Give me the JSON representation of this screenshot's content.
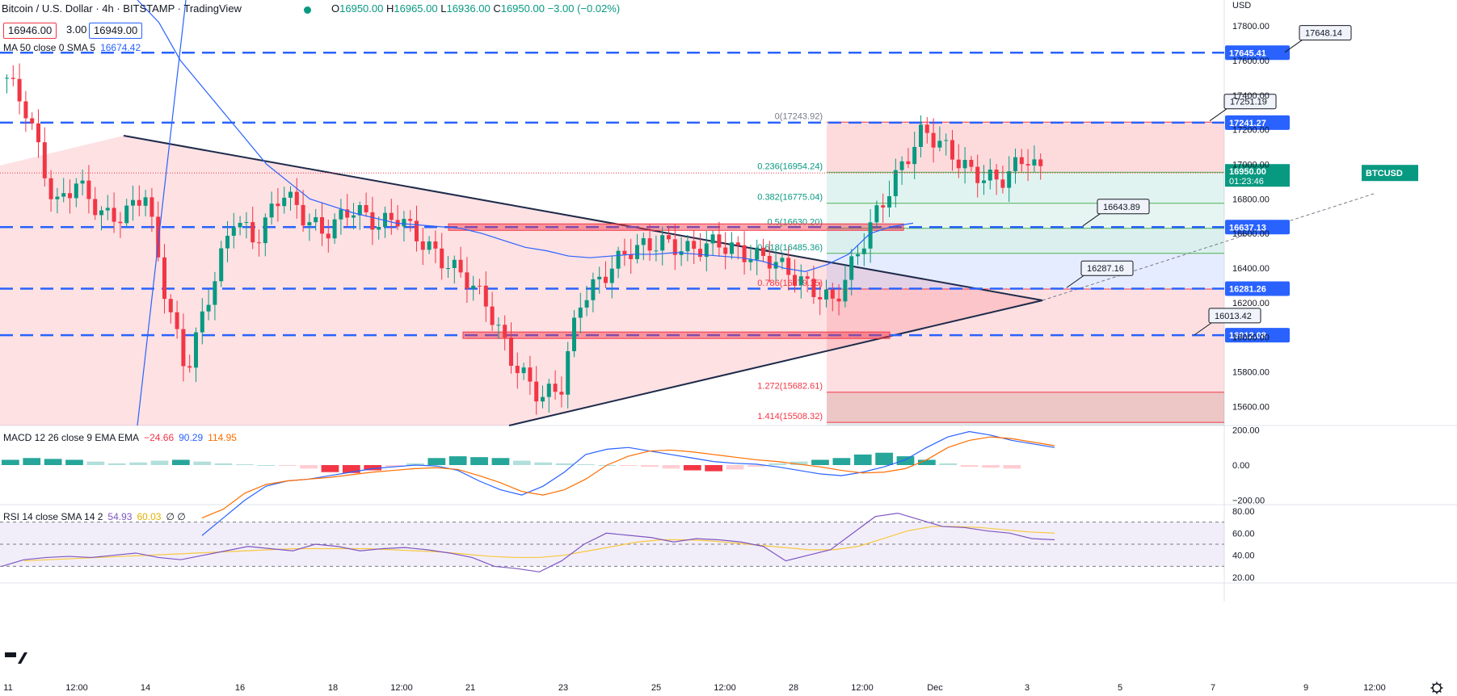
{
  "header": {
    "symbol_title": "Bitcoin / U.S. Dollar · 4h · BITSTAMP · TradingView",
    "open": "16950.00",
    "high": "16965.00",
    "low": "16936.00",
    "close": "16950.00",
    "change": "−3.00 (−0.02%)",
    "bid": "16946.00",
    "spread": "3.00",
    "ask": "16949.00"
  },
  "ma_legend": {
    "label": "MA 50 close 0 SMA 5",
    "value": "16674.42"
  },
  "macd_legend": {
    "label": "MACD 12 26 close 9 EMA EMA",
    "hist": "−24.66",
    "macd": "90.29",
    "signal": "114.95"
  },
  "rsi_legend": {
    "label": "RSI 14 close SMA 14 2",
    "rsi": "54.93",
    "sma": "60.03",
    "extra": "∅ ∅"
  },
  "colors": {
    "up": "#089981",
    "down": "#f23645",
    "level_line": "#2962ff",
    "ma": "#2962ff",
    "macd_line": "#2962ff",
    "signal_line": "#ff6d00",
    "rsi_line": "#7e57c2",
    "rsi_sma": "#f7c843"
  },
  "chart_data": {
    "type": "candlestick",
    "title": "Bitcoin / U.S. Dollar · 4h · BITSTAMP",
    "currency": "USD",
    "price_range": [
      15490,
      17950
    ],
    "price_ticks": [
      "17800.00",
      "17600.00",
      "17400.00",
      "17200.00",
      "17000.00",
      "16800.00",
      "16600.00",
      "16400.00",
      "16200.00",
      "16000.00",
      "15800.00",
      "15600.00"
    ],
    "time_labels": [
      "11",
      "12:00",
      "14",
      "16",
      "18",
      "12:00",
      "21",
      "23",
      "25",
      "12:00",
      "28",
      "12:00",
      "Dec",
      "3",
      "5",
      "7",
      "9",
      "12:00"
    ],
    "last_price": {
      "symbol": "BTCUSD",
      "value": "16950.00",
      "countdown": "01:23:46",
      "price": 16950
    },
    "horizontal_levels": [
      {
        "price": 17645.41,
        "label": "17645.41"
      },
      {
        "price": 17241.27,
        "label": "17241.27"
      },
      {
        "price": 16637.13,
        "label": "16637.13"
      },
      {
        "price": 16281.26,
        "label": "16281.26"
      },
      {
        "price": 16012.08,
        "label": "16012.08"
      }
    ],
    "callouts": [
      {
        "text": "17648.14",
        "price": 17648.14
      },
      {
        "text": "17251.19",
        "price": 17251.19
      },
      {
        "text": "16643.89",
        "price": 16643.89
      },
      {
        "text": "16287.16",
        "price": 16287.16
      },
      {
        "text": "16013.42",
        "price": 16013.42
      }
    ],
    "fibonacci": [
      {
        "ratio": "0",
        "label": "0(17243.92)",
        "price": 17243.92
      },
      {
        "ratio": "0.236",
        "label": "0.236(16954.24)",
        "price": 16954.24
      },
      {
        "ratio": "0.382",
        "label": "0.382(16775.04)",
        "price": 16775.04
      },
      {
        "ratio": "0.5",
        "label": "0.5(16630.20)",
        "price": 16630.2
      },
      {
        "ratio": "0.618",
        "label": "0.618(16485.36)",
        "price": 16485.36
      },
      {
        "ratio": "0.786",
        "label": "0.786(16279.15)",
        "price": 16279.15
      },
      {
        "ratio": "1.272",
        "label": "1.272(15682.61)",
        "price": 15682.61
      },
      {
        "ratio": "1.414",
        "label": "1.414(15508.32)",
        "price": 15508.32
      }
    ],
    "ma_line": [
      17950,
      17820,
      17600,
      17450,
      17300,
      17150,
      17000,
      16900,
      16800,
      16760,
      16720,
      16690,
      16660,
      16650,
      16640,
      16630,
      16600,
      16560,
      16520,
      16500,
      16470,
      16460,
      16470,
      16480,
      16480,
      16490,
      16480,
      16470,
      16460,
      16440,
      16400,
      16380,
      16420,
      16480,
      16600,
      16640,
      16660
    ],
    "macd": {
      "range": [
        -220,
        220
      ],
      "ticks": [
        "200.00",
        "0.00",
        "−200.00"
      ],
      "hist": [
        30,
        40,
        35,
        30,
        20,
        10,
        15,
        25,
        30,
        20,
        10,
        5,
        0,
        -5,
        -20,
        -40,
        -45,
        -30,
        -10,
        10,
        40,
        50,
        45,
        40,
        25,
        15,
        10,
        5,
        0,
        -5,
        -10,
        -20,
        -30,
        -35,
        -25,
        -10,
        10,
        20,
        30,
        40,
        60,
        70,
        50,
        30,
        10,
        -10,
        -15,
        -20
      ],
      "line": [
        -400,
        -300,
        -200,
        -120,
        -90,
        -80,
        -60,
        -40,
        -20,
        -10,
        0,
        -5,
        -30,
        -90,
        -140,
        -170,
        -120,
        -40,
        60,
        90,
        100,
        80,
        60,
        40,
        20,
        10,
        5,
        -10,
        -30,
        -50,
        -60,
        -40,
        -10,
        30,
        100,
        160,
        190,
        170,
        140,
        120,
        100
      ],
      "signal": [
        -300,
        -250,
        -160,
        -110,
        -90,
        -80,
        -70,
        -55,
        -40,
        -30,
        -20,
        -15,
        -25,
        -60,
        -100,
        -150,
        -170,
        -140,
        -80,
        0,
        50,
        80,
        85,
        75,
        60,
        45,
        30,
        20,
        5,
        -10,
        -30,
        -45,
        -40,
        -20,
        30,
        100,
        140,
        160,
        150,
        130,
        110
      ]
    },
    "rsi": {
      "range": [
        15,
        85
      ],
      "ticks": [
        "80.00",
        "60.00",
        "40.00",
        "20.00"
      ],
      "bands": [
        70,
        50,
        30
      ],
      "line": [
        30,
        36,
        38,
        39,
        38,
        40,
        42,
        38,
        36,
        40,
        44,
        48,
        46,
        44,
        50,
        48,
        44,
        46,
        47,
        45,
        42,
        38,
        30,
        28,
        25,
        35,
        50,
        60,
        58,
        56,
        52,
        55,
        54,
        52,
        48,
        35,
        40,
        45,
        60,
        75,
        78,
        72,
        66,
        65,
        62,
        60,
        55,
        54
      ],
      "sma": [
        35,
        36,
        37,
        38,
        39,
        40,
        41,
        42,
        43,
        44,
        45,
        46,
        46,
        46,
        46,
        45,
        44,
        43,
        41,
        39,
        38,
        38,
        40,
        44,
        48,
        52,
        54,
        54,
        53,
        51,
        49,
        47,
        45,
        45,
        48,
        55,
        62,
        66,
        66,
        65,
        63,
        61,
        60
      ]
    }
  }
}
